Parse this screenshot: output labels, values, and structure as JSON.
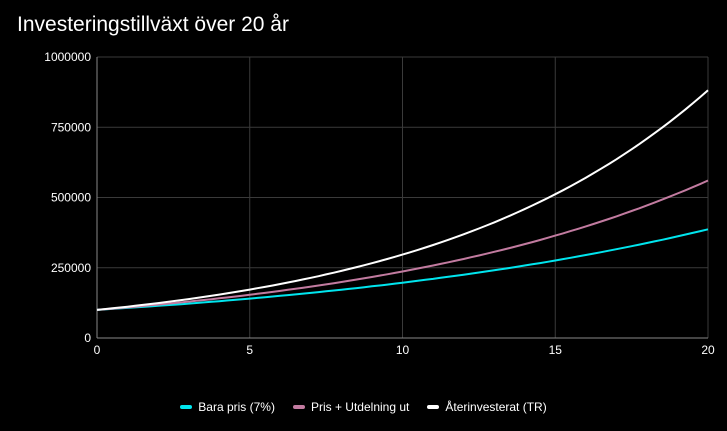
{
  "chart_data": {
    "type": "line",
    "title": "Investeringstillväxt över 20 år",
    "xlabel": "",
    "ylabel": "",
    "xlim": [
      0,
      20
    ],
    "ylim": [
      0,
      1000000
    ],
    "x_ticks": [
      "0",
      "5",
      "10",
      "15",
      "20"
    ],
    "y_ticks": [
      "0",
      "250000",
      "500000",
      "750000",
      "1000000"
    ],
    "grid": true,
    "legend_position": "bottom",
    "x": [
      0,
      2,
      4,
      6,
      8,
      10,
      12,
      14,
      16,
      18,
      20
    ],
    "series": [
      {
        "name": "Bara pris (7%)",
        "color": "#00e5ee",
        "values": [
          100000,
          114490,
          131080,
          150070,
          171820,
          196720,
          225220,
          257850,
          295220,
          337990,
          386970
        ]
      },
      {
        "name": "Pris + Utdelning ut",
        "color": "#c27ba0",
        "values": [
          100000,
          118810,
          141160,
          167710,
          199260,
          236740,
          281270,
          334180,
          397030,
          471720,
          560440
        ]
      },
      {
        "name": "Återinvesterat (TR)",
        "color": "#ffffff",
        "values": [
          100000,
          124320,
          154540,
          192100,
          238830,
          296900,
          369100,
          458880,
          570480,
          709220,
          881680
        ]
      }
    ]
  }
}
